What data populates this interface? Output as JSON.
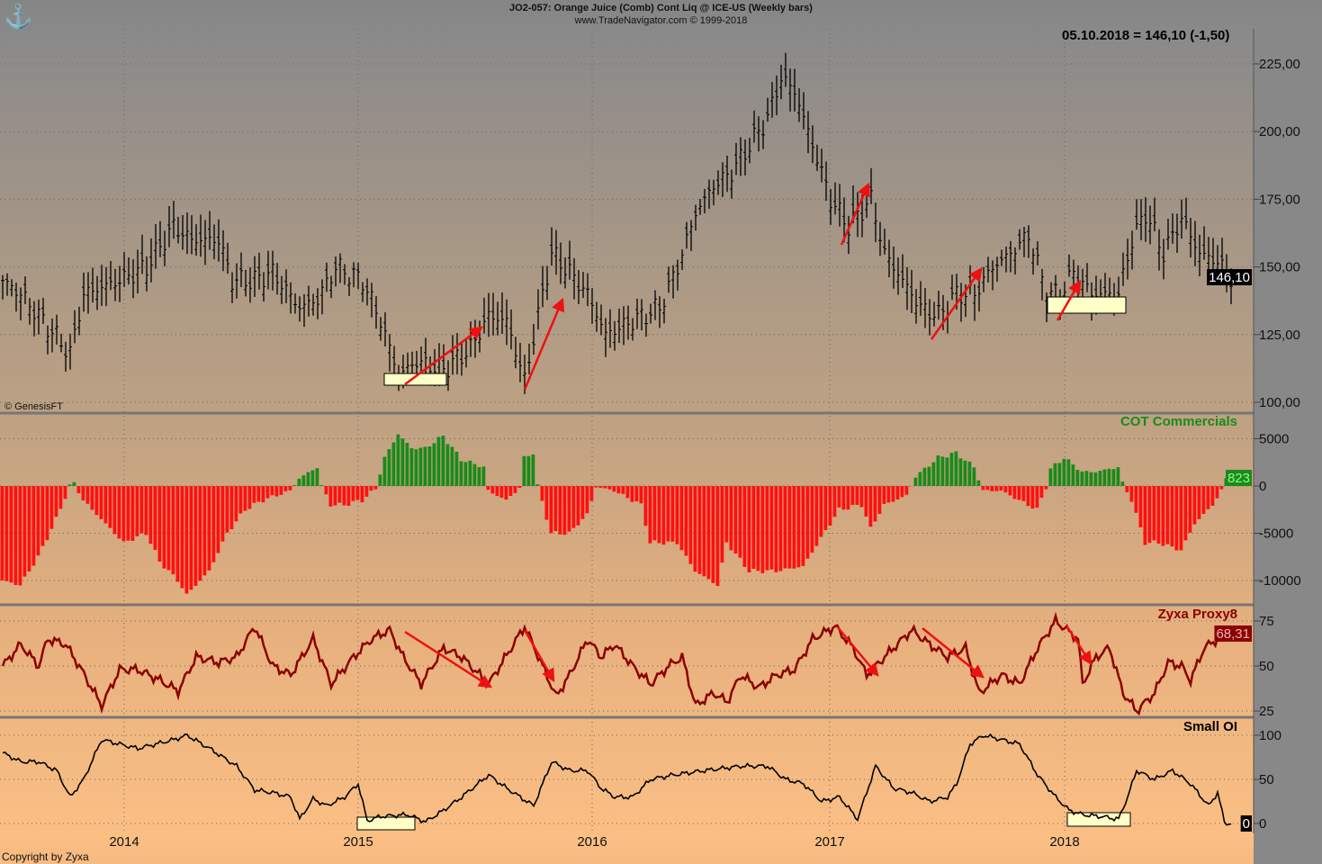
{
  "header": {
    "title": "JO2-057:  Orange Juice (Comb) Cont Liq @ ICE-US  (Weekly bars)",
    "subtitle": "www.TradeNavigator.com © 1999-2018",
    "last_quote": "05.10.2018 = 146,10 (-1,50)",
    "source": "© GenesisFT",
    "copyright": "Copyright by Zyxa"
  },
  "colors": {
    "up": "#1a8a1a",
    "down": "#ff1010",
    "proxy": "#8b0000",
    "arrow": "#ee1111",
    "box": "#ffffc8"
  },
  "chart_data": [
    {
      "type": "ohlc",
      "name": "price",
      "x_unit": "weeks since mid-2013",
      "ylim": [
        100,
        225
      ],
      "yticks": [
        "225,00",
        "200,00",
        "175,00",
        "150,00",
        "125,00",
        "100,00"
      ],
      "ytick_values": [
        225,
        200,
        175,
        150,
        125,
        100
      ],
      "last_label": "146,10",
      "xticks": [
        {
          "label": "2014",
          "week": 27.6
        },
        {
          "label": "2015",
          "week": 79.6
        },
        {
          "label": "2016",
          "week": 131.6
        },
        {
          "label": "2017",
          "week": 184.4
        },
        {
          "label": "2018",
          "week": 236.6
        }
      ],
      "keypoints": [
        [
          0,
          145
        ],
        [
          4,
          140
        ],
        [
          10,
          128
        ],
        [
          15,
          118
        ],
        [
          18,
          140
        ],
        [
          26,
          145
        ],
        [
          32,
          150
        ],
        [
          38,
          165
        ],
        [
          42,
          160
        ],
        [
          48,
          160
        ],
        [
          51,
          145
        ],
        [
          56,
          145
        ],
        [
          60,
          148
        ],
        [
          66,
          135
        ],
        [
          70,
          138
        ],
        [
          74,
          150
        ],
        [
          80,
          145
        ],
        [
          84,
          130
        ],
        [
          88,
          110
        ],
        [
          92,
          115
        ],
        [
          98,
          112
        ],
        [
          104,
          120
        ],
        [
          108,
          132
        ],
        [
          112,
          130
        ],
        [
          116,
          108
        ],
        [
          120,
          140
        ],
        [
          122,
          155
        ],
        [
          126,
          148
        ],
        [
          130,
          140
        ],
        [
          134,
          125
        ],
        [
          140,
          130
        ],
        [
          146,
          135
        ],
        [
          150,
          150
        ],
        [
          154,
          170
        ],
        [
          158,
          180
        ],
        [
          162,
          185
        ],
        [
          166,
          195
        ],
        [
          170,
          205
        ],
        [
          173,
          220
        ],
        [
          176,
          215
        ],
        [
          180,
          195
        ],
        [
          184,
          175
        ],
        [
          188,
          165
        ],
        [
          193,
          175
        ],
        [
          196,
          155
        ],
        [
          200,
          145
        ],
        [
          204,
          135
        ],
        [
          208,
          132
        ],
        [
          212,
          140
        ],
        [
          216,
          140
        ],
        [
          220,
          150
        ],
        [
          224,
          155
        ],
        [
          228,
          162
        ],
        [
          232,
          140
        ],
        [
          235,
          140
        ],
        [
          238,
          148
        ],
        [
          242,
          140
        ],
        [
          248,
          140
        ],
        [
          251,
          160
        ],
        [
          254,
          170
        ],
        [
          258,
          155
        ],
        [
          262,
          168
        ],
        [
          266,
          155
        ],
        [
          270,
          152
        ],
        [
          273,
          146
        ]
      ]
    },
    {
      "type": "bar",
      "name": "COT Commercials",
      "title": "COT Commercials",
      "ylim": [
        -12000,
        7000
      ],
      "yticks": [
        "5000",
        "0",
        "-5000",
        "-10000"
      ],
      "ytick_values": [
        5000,
        0,
        -5000,
        -10000
      ],
      "last_label": "823",
      "keypoints": [
        [
          0,
          -10000
        ],
        [
          4,
          -10500
        ],
        [
          8,
          -7500
        ],
        [
          12,
          -3500
        ],
        [
          15,
          0
        ],
        [
          16,
          300
        ],
        [
          18,
          -1500
        ],
        [
          22,
          -3500
        ],
        [
          27,
          -6000
        ],
        [
          32,
          -5000
        ],
        [
          35,
          -8000
        ],
        [
          39,
          -10000
        ],
        [
          41,
          -11500
        ],
        [
          46,
          -9000
        ],
        [
          50,
          -5000
        ],
        [
          54,
          -2500
        ],
        [
          58,
          -1500
        ],
        [
          64,
          -500
        ],
        [
          66,
          800
        ],
        [
          70,
          2000
        ],
        [
          71,
          0
        ],
        [
          73,
          -2000
        ],
        [
          76,
          -2000
        ],
        [
          80,
          -1500
        ],
        [
          83,
          -300
        ],
        [
          85,
          3000
        ],
        [
          88,
          5500
        ],
        [
          91,
          4000
        ],
        [
          94,
          4000
        ],
        [
          98,
          5300
        ],
        [
          102,
          2800
        ],
        [
          107,
          2000
        ],
        [
          108,
          -500
        ],
        [
          112,
          -1500
        ],
        [
          115,
          -200
        ],
        [
          116,
          3000
        ],
        [
          118,
          3500
        ],
        [
          119,
          0
        ],
        [
          122,
          -5000
        ],
        [
          126,
          -5000
        ],
        [
          130,
          -3000
        ],
        [
          132,
          -100
        ],
        [
          136,
          -500
        ],
        [
          142,
          -2000
        ],
        [
          144,
          -6000
        ],
        [
          150,
          -6000
        ],
        [
          154,
          -9000
        ],
        [
          159,
          -10500
        ],
        [
          161,
          -6000
        ],
        [
          166,
          -9000
        ],
        [
          172,
          -9000
        ],
        [
          178,
          -8500
        ],
        [
          182,
          -5500
        ],
        [
          186,
          -2500
        ],
        [
          191,
          -2000
        ],
        [
          193,
          -4500
        ],
        [
          196,
          -2000
        ],
        [
          201,
          -1000
        ],
        [
          203,
          1000
        ],
        [
          208,
          3000
        ],
        [
          212,
          3500
        ],
        [
          216,
          2000
        ],
        [
          218,
          -500
        ],
        [
          222,
          -500
        ],
        [
          226,
          -1500
        ],
        [
          230,
          -2500
        ],
        [
          232,
          -100
        ],
        [
          233,
          1800
        ],
        [
          236,
          3000
        ],
        [
          240,
          1500
        ],
        [
          243,
          1500
        ],
        [
          248,
          2000
        ],
        [
          249,
          300
        ],
        [
          251,
          -1500
        ],
        [
          254,
          -6000
        ],
        [
          257,
          -6000
        ],
        [
          262,
          -6800
        ],
        [
          265,
          -4000
        ],
        [
          269,
          -2000
        ],
        [
          271,
          -500
        ],
        [
          272,
          823
        ],
        [
          273,
          823
        ]
      ]
    },
    {
      "type": "line",
      "name": "Zyxa Proxy8",
      "title": "Zyxa Proxy8",
      "ylim": [
        22,
        80
      ],
      "yticks": [
        "75",
        "50",
        "25"
      ],
      "ytick_values": [
        75,
        50,
        25
      ],
      "last_label": "68,31",
      "keypoints": [
        [
          0,
          50
        ],
        [
          4,
          62
        ],
        [
          8,
          50
        ],
        [
          10,
          65
        ],
        [
          14,
          62
        ],
        [
          17,
          50
        ],
        [
          22,
          28
        ],
        [
          26,
          48
        ],
        [
          30,
          48
        ],
        [
          35,
          42
        ],
        [
          39,
          36
        ],
        [
          43,
          55
        ],
        [
          48,
          52
        ],
        [
          52,
          55
        ],
        [
          56,
          72
        ],
        [
          60,
          50
        ],
        [
          64,
          45
        ],
        [
          69,
          65
        ],
        [
          73,
          40
        ],
        [
          78,
          55
        ],
        [
          82,
          65
        ],
        [
          86,
          70
        ],
        [
          89,
          55
        ],
        [
          93,
          40
        ],
        [
          98,
          60
        ],
        [
          102,
          55
        ],
        [
          108,
          40
        ],
        [
          116,
          72
        ],
        [
          120,
          50
        ],
        [
          123,
          33
        ],
        [
          126,
          45
        ],
        [
          130,
          65
        ],
        [
          133,
          55
        ],
        [
          136,
          62
        ],
        [
          140,
          50
        ],
        [
          144,
          40
        ],
        [
          148,
          50
        ],
        [
          151,
          55
        ],
        [
          154,
          28
        ],
        [
          158,
          35
        ],
        [
          161,
          30
        ],
        [
          164,
          45
        ],
        [
          168,
          38
        ],
        [
          172,
          45
        ],
        [
          176,
          48
        ],
        [
          180,
          65
        ],
        [
          185,
          72
        ],
        [
          189,
          60
        ],
        [
          192,
          45
        ],
        [
          196,
          55
        ],
        [
          200,
          65
        ],
        [
          202,
          70
        ],
        [
          206,
          62
        ],
        [
          210,
          55
        ],
        [
          214,
          60
        ],
        [
          217,
          35
        ],
        [
          222,
          45
        ],
        [
          226,
          40
        ],
        [
          230,
          60
        ],
        [
          234,
          75
        ],
        [
          239,
          65
        ],
        [
          240,
          40
        ],
        [
          243,
          55
        ],
        [
          246,
          60
        ],
        [
          249,
          35
        ],
        [
          252,
          25
        ],
        [
          256,
          35
        ],
        [
          259,
          52
        ],
        [
          262,
          50
        ],
        [
          264,
          42
        ],
        [
          267,
          60
        ],
        [
          270,
          65
        ],
        [
          272,
          70
        ],
        [
          273,
          68
        ]
      ]
    },
    {
      "type": "line",
      "name": "Small OI",
      "title": "Small OI",
      "ylim": [
        -10,
        110
      ],
      "yticks": [
        "100",
        "50",
        "0"
      ],
      "ytick_values": [
        100,
        50,
        0
      ],
      "last_label": "0",
      "keypoints": [
        [
          0,
          80
        ],
        [
          4,
          70
        ],
        [
          8,
          70
        ],
        [
          12,
          60
        ],
        [
          15,
          30
        ],
        [
          18,
          50
        ],
        [
          22,
          95
        ],
        [
          26,
          90
        ],
        [
          30,
          85
        ],
        [
          34,
          90
        ],
        [
          38,
          95
        ],
        [
          41,
          100
        ],
        [
          46,
          85
        ],
        [
          52,
          65
        ],
        [
          56,
          38
        ],
        [
          60,
          35
        ],
        [
          64,
          30
        ],
        [
          66,
          5
        ],
        [
          69,
          28
        ],
        [
          72,
          20
        ],
        [
          76,
          30
        ],
        [
          79,
          45
        ],
        [
          81,
          3
        ],
        [
          84,
          8
        ],
        [
          90,
          10
        ],
        [
          94,
          2
        ],
        [
          98,
          15
        ],
        [
          102,
          30
        ],
        [
          108,
          55
        ],
        [
          112,
          40
        ],
        [
          118,
          20
        ],
        [
          122,
          70
        ],
        [
          126,
          60
        ],
        [
          130,
          60
        ],
        [
          133,
          40
        ],
        [
          136,
          30
        ],
        [
          140,
          30
        ],
        [
          144,
          50
        ],
        [
          149,
          55
        ],
        [
          156,
          60
        ],
        [
          164,
          65
        ],
        [
          170,
          65
        ],
        [
          174,
          50
        ],
        [
          178,
          45
        ],
        [
          182,
          25
        ],
        [
          186,
          30
        ],
        [
          190,
          5
        ],
        [
          194,
          65
        ],
        [
          198,
          40
        ],
        [
          202,
          35
        ],
        [
          206,
          25
        ],
        [
          210,
          30
        ],
        [
          212,
          45
        ],
        [
          215,
          90
        ],
        [
          218,
          100
        ],
        [
          222,
          95
        ],
        [
          226,
          90
        ],
        [
          230,
          55
        ],
        [
          234,
          30
        ],
        [
          237,
          15
        ],
        [
          240,
          10
        ],
        [
          244,
          8
        ],
        [
          248,
          5
        ],
        [
          250,
          30
        ],
        [
          252,
          60
        ],
        [
          256,
          50
        ],
        [
          260,
          60
        ],
        [
          264,
          45
        ],
        [
          268,
          20
        ],
        [
          270,
          35
        ],
        [
          271.6,
          0
        ],
        [
          273,
          0
        ]
      ]
    }
  ]
}
